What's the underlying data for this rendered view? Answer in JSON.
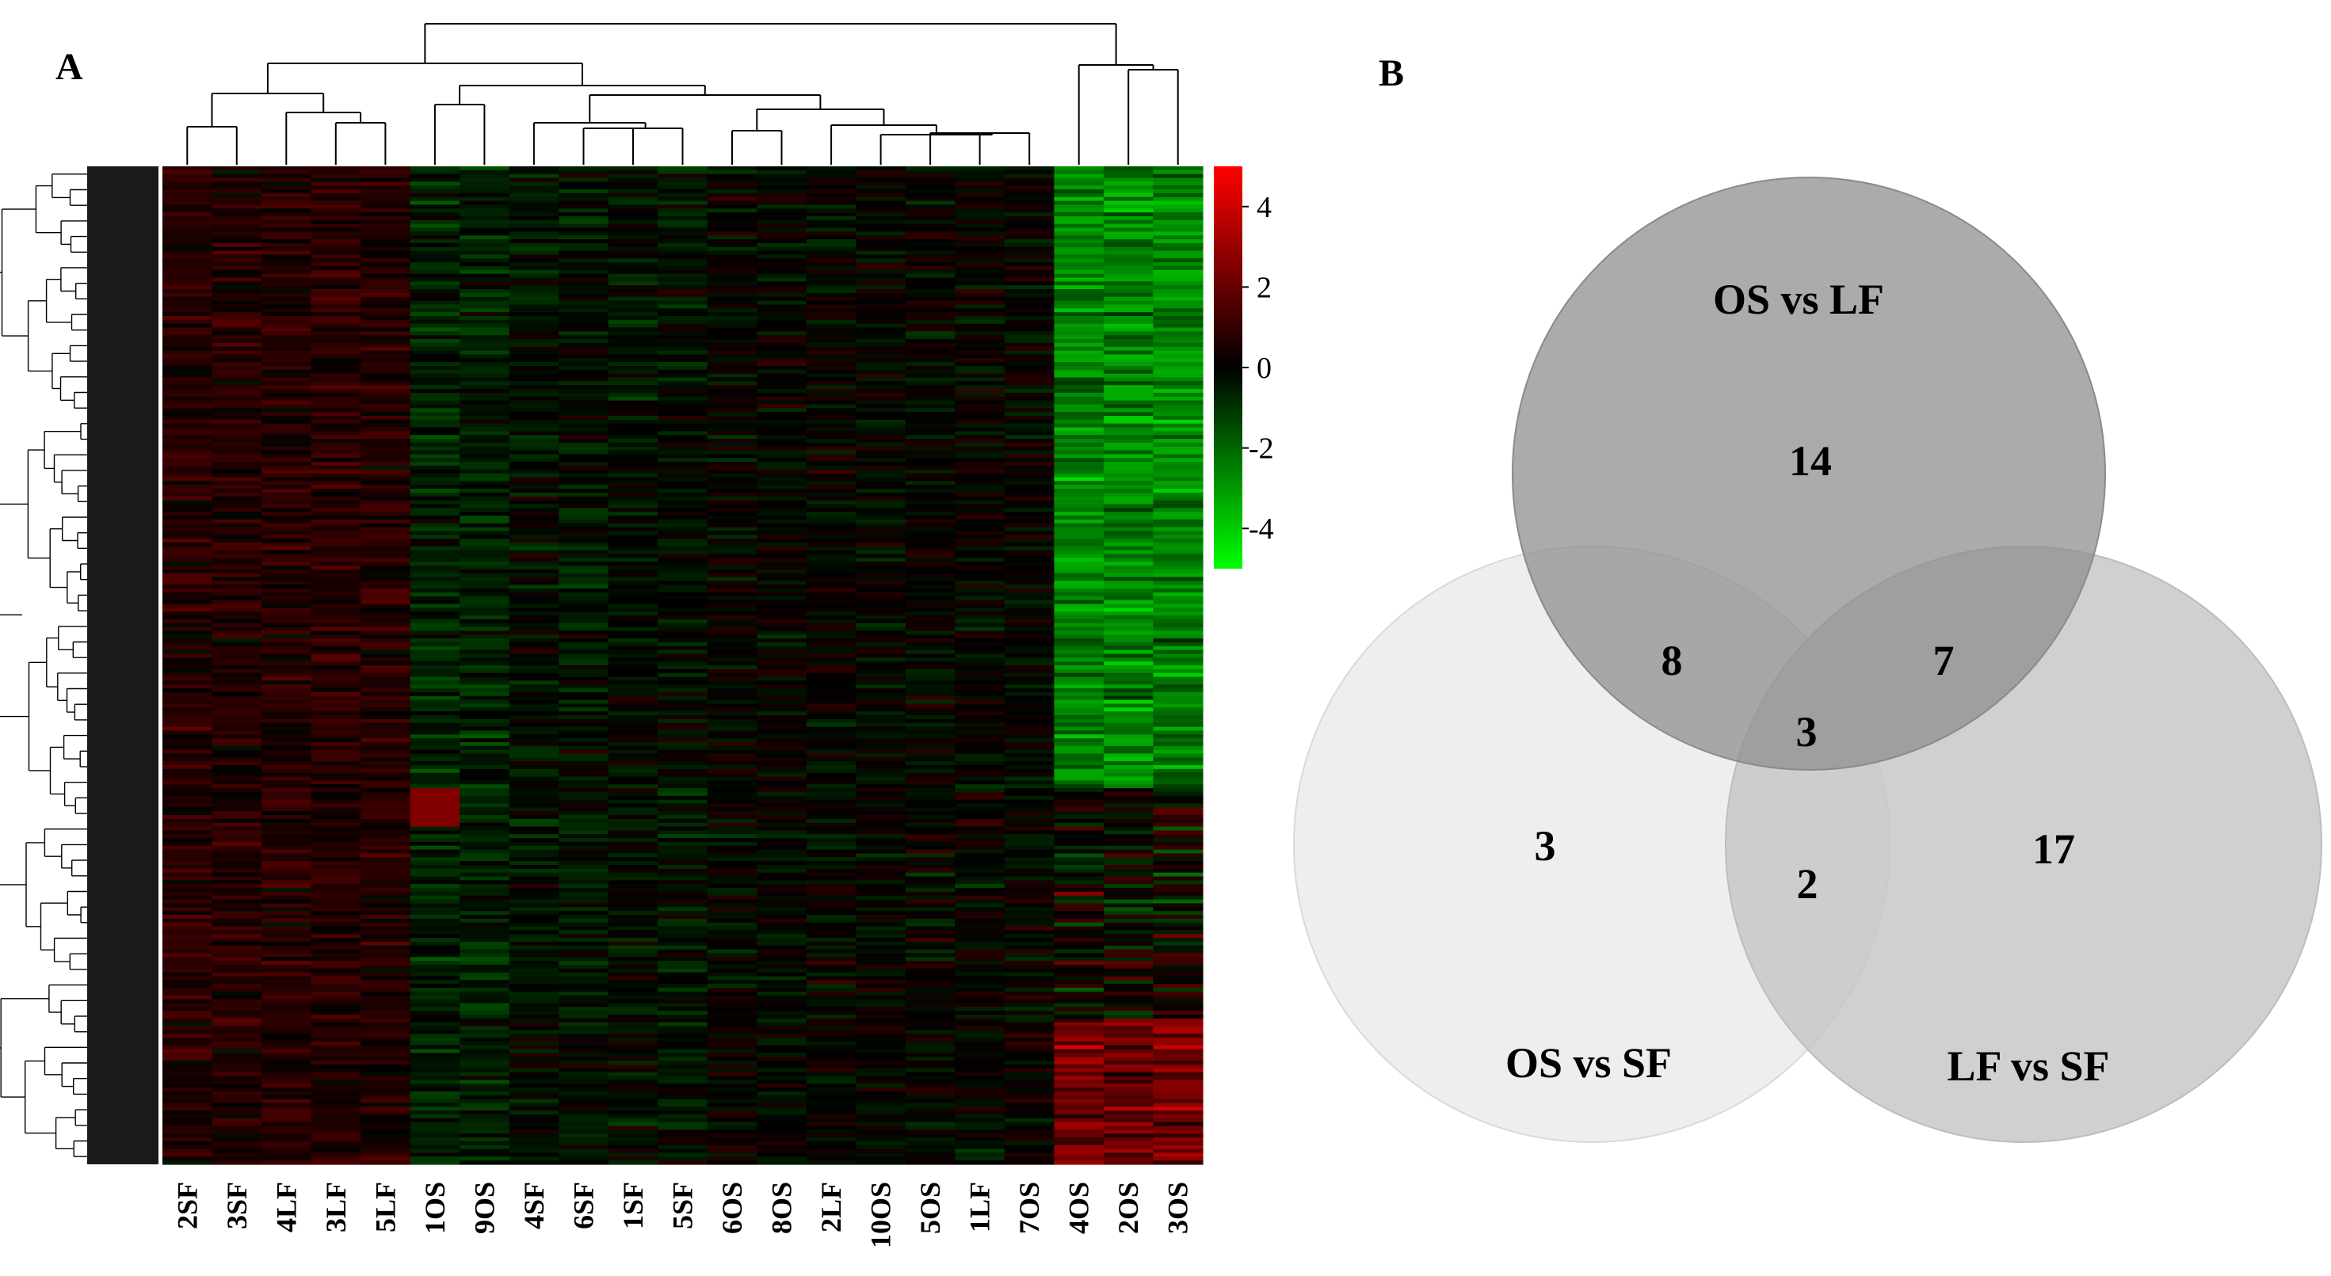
{
  "panels": {
    "a_label": "A",
    "b_label": "B"
  },
  "chart_data": [
    {
      "type": "heatmap",
      "title": "",
      "columns": [
        "2SF",
        "3SF",
        "4LF",
        "3LF",
        "5LF",
        "1OS",
        "9OS",
        "4SF",
        "6SF",
        "1SF",
        "5SF",
        "6OS",
        "8OS",
        "2LF",
        "10OS",
        "5OS",
        "1LF",
        "7OS",
        "4OS",
        "2OS",
        "3OS"
      ],
      "value_range": [
        -5,
        5
      ],
      "colorbar": {
        "ticks": [
          4,
          2,
          0,
          -2,
          -4
        ],
        "tick_labels": [
          "4",
          "2",
          "0",
          "-2",
          "-4"
        ],
        "colors": {
          "high": "#ff0000",
          "mid": "#000000",
          "low": "#00ff00"
        }
      },
      "column_dendrogram_groups": [
        [
          "2SF",
          "3SF",
          "4LF",
          "3LF",
          "5LF"
        ],
        [
          "1OS",
          "9OS"
        ],
        [
          "4SF",
          "6SF",
          "1SF",
          "5SF",
          "6OS",
          "8OS",
          "2LF",
          "10OS",
          "5OS",
          "1LF",
          "7OS"
        ],
        [
          "4OS",
          "2OS",
          "3OS"
        ]
      ],
      "row_count_approx": 260
    },
    {
      "type": "venn",
      "sets": [
        {
          "name": "OS vs LF",
          "only": 14,
          "fill": "#a9a9a9"
        },
        {
          "name": "OS vs SF",
          "only": 3,
          "fill": "#ebebeb"
        },
        {
          "name": "LF vs SF",
          "only": 17,
          "fill": "#cccccc"
        }
      ],
      "intersections": {
        "os_lf__os_sf": 8,
        "os_lf__lf_sf": 7,
        "os_sf__lf_sf": 2,
        "all_three": 3
      }
    }
  ]
}
